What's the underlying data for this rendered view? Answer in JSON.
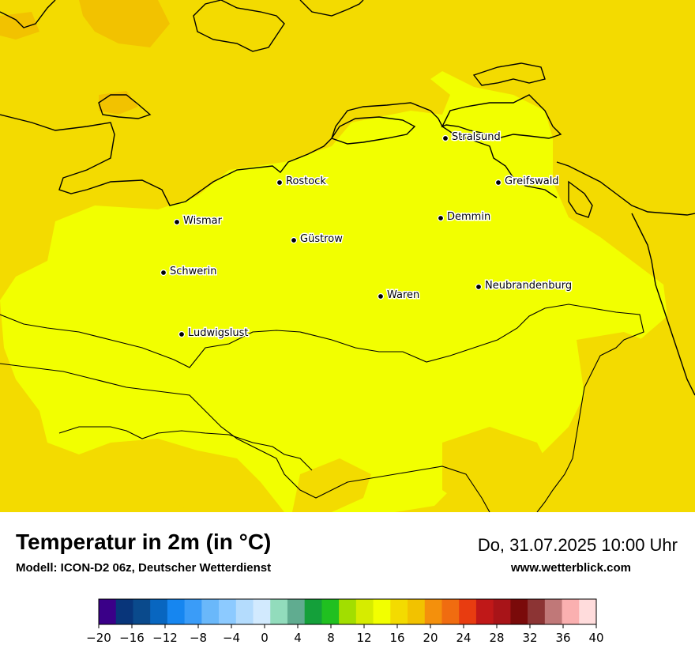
{
  "map": {
    "title": "Temperatur in 2m (in °C)",
    "model": "Modell: ICON-D2 06z, Deutscher Wetterdienst",
    "datetime": "Do, 31.07.2025 10:00 Uhr",
    "website": "www.wetterblick.com",
    "colors": {
      "land_main": "#f2ff00",
      "warm_band": "#f3db00",
      "warmer_patch": "#f2c200",
      "coast_line": "#000000"
    },
    "cities": [
      {
        "name": "Stralsund"
      },
      {
        "name": "Rostock"
      },
      {
        "name": "Greifswald"
      },
      {
        "name": "Wismar"
      },
      {
        "name": "Demmin"
      },
      {
        "name": "Güstrow"
      },
      {
        "name": "Schwerin"
      },
      {
        "name": "Neubrandenburg"
      },
      {
        "name": "Waren"
      },
      {
        "name": "Ludwigslust"
      }
    ]
  },
  "legend": {
    "ticks": [
      "−20",
      "−16",
      "−12",
      "−8",
      "−4",
      "0",
      "4",
      "8",
      "12",
      "16",
      "20",
      "24",
      "28",
      "32",
      "36",
      "40"
    ],
    "colors": [
      "#3a0088",
      "#08357a",
      "#0a4a8c",
      "#0866c0",
      "#1686f0",
      "#3a9cf8",
      "#6ab8fa",
      "#8ccaff",
      "#b4dcfd",
      "#d2eafe",
      "#92dcbc",
      "#60ac90",
      "#14a03a",
      "#20c020",
      "#a2de00",
      "#d6ec00",
      "#f2ff00",
      "#f3db00",
      "#f2c200",
      "#f4900c",
      "#f06c10",
      "#e83c10",
      "#c01818",
      "#a81418",
      "#7a0a0a",
      "#8c3434",
      "#c07878",
      "#fab0b0",
      "#ffdcdc"
    ]
  }
}
